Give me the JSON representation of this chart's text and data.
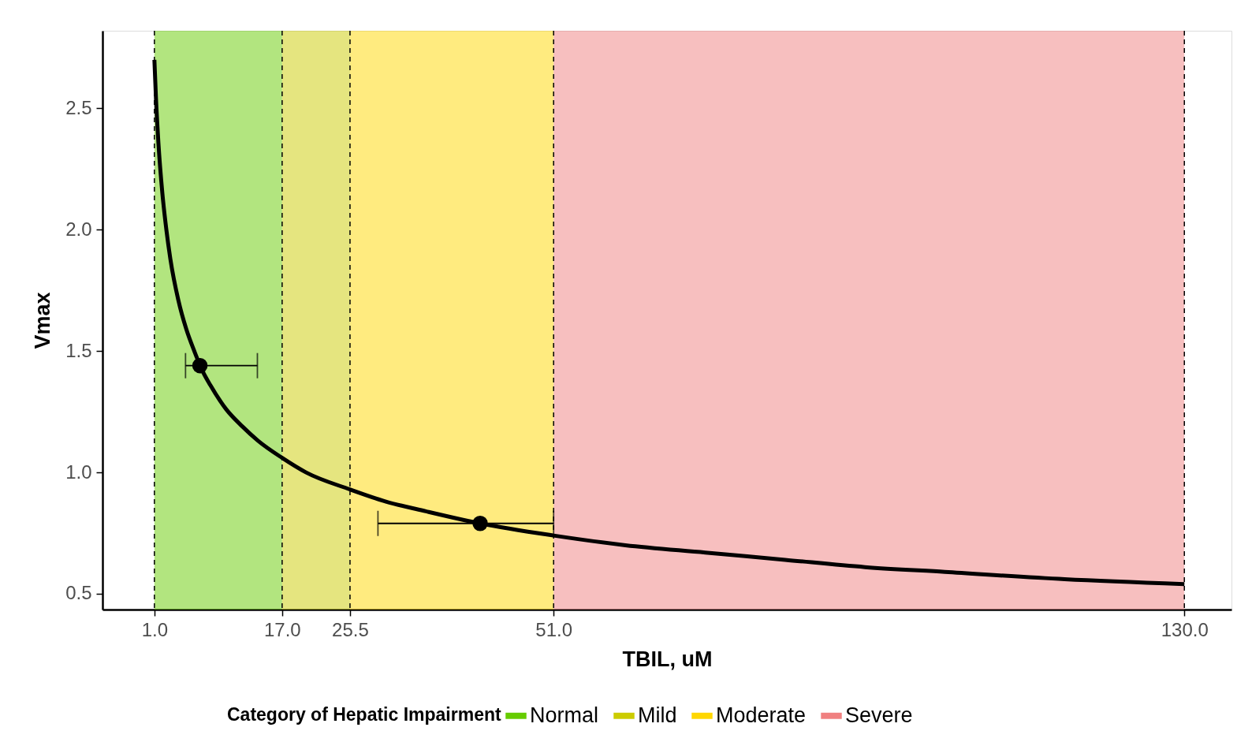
{
  "chart_data": {
    "type": "line",
    "xlabel": "TBIL, uM",
    "ylabel": "Vmax",
    "legend_title": "Category of Hepatic Impairment",
    "legend": "bottom",
    "grid": false,
    "xlim": [
      -5.5,
      135.9
    ],
    "ylim": [
      0.435,
      2.82
    ],
    "xticks": [
      {
        "value": 1,
        "label": "1.0"
      },
      {
        "value": 17,
        "label": "17.0"
      },
      {
        "value": 25.5,
        "label": "25.5"
      },
      {
        "value": 51,
        "label": "51.0"
      },
      {
        "value": 130,
        "label": "130.0"
      }
    ],
    "yticks": [
      {
        "value": 0.5,
        "label": "0.5"
      },
      {
        "value": 1,
        "label": "1.0"
      },
      {
        "value": 1.5,
        "label": "1.5"
      },
      {
        "value": 2,
        "label": "2.0"
      },
      {
        "value": 2.5,
        "label": "2.5"
      }
    ],
    "bands": [
      {
        "axis": "x",
        "from": 1,
        "to": 17,
        "label": "Normal",
        "color": "#66cc00"
      },
      {
        "axis": "x",
        "from": 17,
        "to": 25.5,
        "label": "Mild",
        "color": "#cccc00"
      },
      {
        "axis": "x",
        "from": 25.5,
        "to": 51,
        "label": "Moderate",
        "color": "#ffd700"
      },
      {
        "axis": "x",
        "from": 51,
        "to": 130,
        "label": "Severe",
        "color": "#f08080"
      }
    ],
    "ref_lines": [
      {
        "axis": "x",
        "value": 1,
        "line_style": "dashed",
        "color": "#000000"
      },
      {
        "axis": "x",
        "value": 17,
        "line_style": "dashed",
        "color": "#000000"
      },
      {
        "axis": "x",
        "value": 25.5,
        "line_style": "dashed",
        "color": "#000000"
      },
      {
        "axis": "x",
        "value": 51,
        "line_style": "dashed",
        "color": "#000000"
      },
      {
        "axis": "x",
        "value": 130,
        "line_style": "dashed",
        "color": "#000000"
      }
    ],
    "series": [
      {
        "type": "line",
        "color": "#000000",
        "line_style": "solid",
        "x": [
          1,
          1.2,
          1.5,
          2,
          2.5,
          3,
          4,
          5,
          6,
          7,
          8,
          10,
          12,
          14,
          17,
          20,
          25.5,
          30,
          35,
          41.8,
          51,
          60,
          70,
          80,
          90,
          100,
          115,
          130
        ],
        "values": [
          2.7,
          2.54,
          2.36,
          2.15,
          2.0,
          1.88,
          1.71,
          1.59,
          1.5,
          1.42,
          1.36,
          1.26,
          1.19,
          1.13,
          1.06,
          1.0,
          0.93,
          0.88,
          0.84,
          0.79,
          0.74,
          0.7,
          0.67,
          0.64,
          0.61,
          0.59,
          0.56,
          0.54
        ]
      },
      {
        "type": "scatter",
        "color": "#000000",
        "marker": "circle",
        "x": [
          6.7,
          41.8
        ],
        "values": [
          1.44,
          0.79
        ],
        "xerrors": [
          [
            4.9,
            13.9
          ],
          [
            29.0,
            51.0
          ]
        ]
      }
    ]
  }
}
